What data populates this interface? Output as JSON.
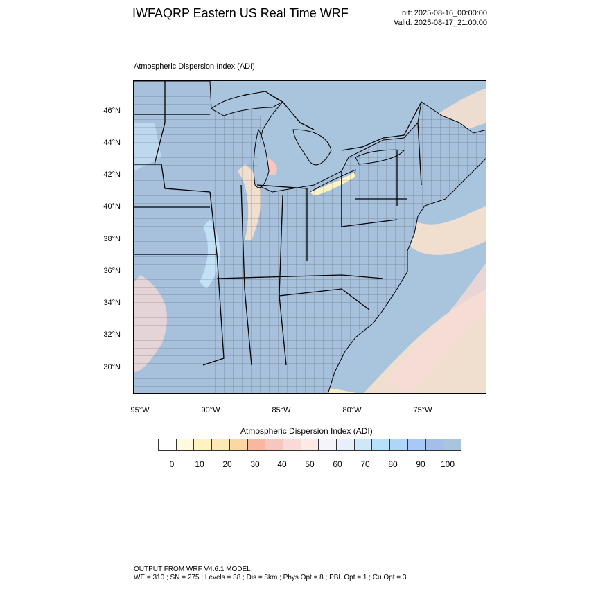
{
  "header": {
    "title": "IWFAQRP Eastern US Real Time WRF",
    "init": "Init: 2025-08-16_00:00:00",
    "valid": "Valid: 2025-08-17_21:00:00"
  },
  "map": {
    "title": "Atmospheric Dispersion Index   (ADI)",
    "lat_labels": [
      "46°N",
      "44°N",
      "42°N",
      "40°N",
      "38°N",
      "36°N",
      "34°N",
      "32°N",
      "30°N"
    ],
    "lon_labels": [
      "95°W",
      "90°W",
      "85°W",
      "80°W",
      "75°W"
    ],
    "colors": {
      "land_high": "#a7c0dc",
      "water": "#a9c4dd",
      "light_blue": "#c7e4f7",
      "cyan": "#bfe7f9",
      "peach": "#fde3cd",
      "yellow": "#fff3c2",
      "orange": "#fbd0a8",
      "pink": "#f6c6c0"
    }
  },
  "colorbar": {
    "title": "Atmospheric Dispersion Index  (ADI)",
    "labels": [
      "0",
      "10",
      "20",
      "30",
      "40",
      "50",
      "60",
      "70",
      "80",
      "90",
      "100"
    ],
    "colors": [
      "#ffffff",
      "#fffadf",
      "#fff3c2",
      "#fde9b8",
      "#fcd7a4",
      "#f8b8a0",
      "#f6c6c0",
      "#f8dbd6",
      "#fdeae6",
      "#f4f4fb",
      "#e8eefb",
      "#cfe8f7",
      "#b5e2fa",
      "#b0d6f7",
      "#a9c8f5",
      "#a5bde8",
      "#a9c4dd"
    ]
  },
  "footer": {
    "line1": "OUTPUT FROM WRF V4.6.1 MODEL",
    "line2": "WE = 310 ; SN = 275 ; Levels = 38 ; Dis = 8km ; Phys Opt = 8 ; PBL Opt = 1 ; Cu Opt = 3"
  }
}
